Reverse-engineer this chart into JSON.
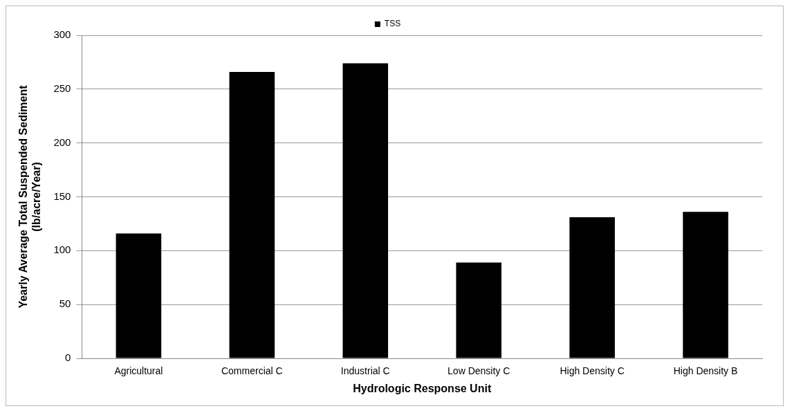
{
  "chart_data": {
    "type": "bar",
    "xlabel": "Hydrologic Response Unit",
    "ylabel": "Yearly Average Total Suspended Sediment (lb/acre/Year)",
    "categories": [
      "Agricultural",
      "Commercial C",
      "Industrial C",
      "Low Density C",
      "High Density C",
      "High Density B"
    ],
    "series": [
      {
        "name": "TSS",
        "color": "#000000",
        "values": [
          116,
          266,
          274,
          89,
          131,
          136
        ]
      }
    ],
    "ylim": [
      0,
      300
    ],
    "yticks": [
      0,
      50,
      100,
      150,
      200,
      250,
      300
    ],
    "grid": "y",
    "legend": "top"
  }
}
